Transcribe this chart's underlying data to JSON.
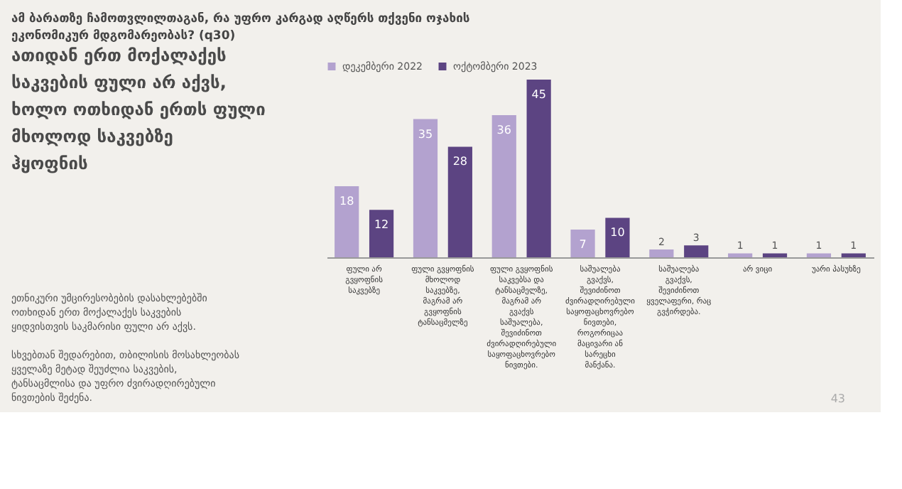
{
  "chart_data": {
    "type": "bar",
    "title": "ათიდან ერთ მოქალაქეს საკვების ფული არ აქვს, ხოლო ოთხიდან ერთს ფული მხოლოდ საკვებზე ჰყოფნის",
    "subtitle": "ამ ბარათზე ჩამოთვლილთაგან, რა უფრო კარგად აღწერს თქვენი ოჯახის ეკონომიკურ მდგომარეობას? (q30)",
    "categories": [
      "ფული არ გვყოფნის საკვებზე",
      "ფული გვყოფნის მხოლოდ საკვებზე, მაგრამ არ გვყოფნის ტანსაცმელზე",
      "ფული გვყოფნის საკვებსა და ტანსაცმელზე, მაგრამ არ გვაქვს საშუალება, შევიძინოთ ძვირადღირებული საყოფაცხოვრებო ნივთები.",
      "საშუალება გვაქვს, შევიძინოთ ძვირადღირებული საყოფაცხოვრებო ნივთები, როგორიცაა მაცივარი ან სარეცხი მანქანა.",
      "საშუალება გვაქვს, შევიძინოთ ყველაფერი, რაც გვჭირდება.",
      "არ ვიცი",
      "უარი პასუხზე"
    ],
    "series": [
      {
        "name": "დეკემბერი 2022",
        "color": "#b3a2cf",
        "values": [
          18,
          35,
          36,
          7,
          2,
          1,
          1
        ]
      },
      {
        "name": "ოქტომბერი 2023",
        "color": "#5c4482",
        "values": [
          12,
          28,
          45,
          10,
          3,
          1,
          1
        ]
      }
    ],
    "data_labels": true,
    "legend": "top left",
    "tick_labels": "x",
    "annotations": [
      "ეთნიკური უმცირესობების დასახლებებში ოთხიდან ერთ მოქალაქეს საკვების ყიდვისთვის საკმარისი ფული არ აქვს.",
      "სხვებთან შედარებით, თბილისის მოსახლეობას ყველაზე მეტად შეუძლია საკვების, ტანსაცმლისა და უფრო ძვირადღირებული ნივთების შეძენა.",
      "43"
    ]
  }
}
